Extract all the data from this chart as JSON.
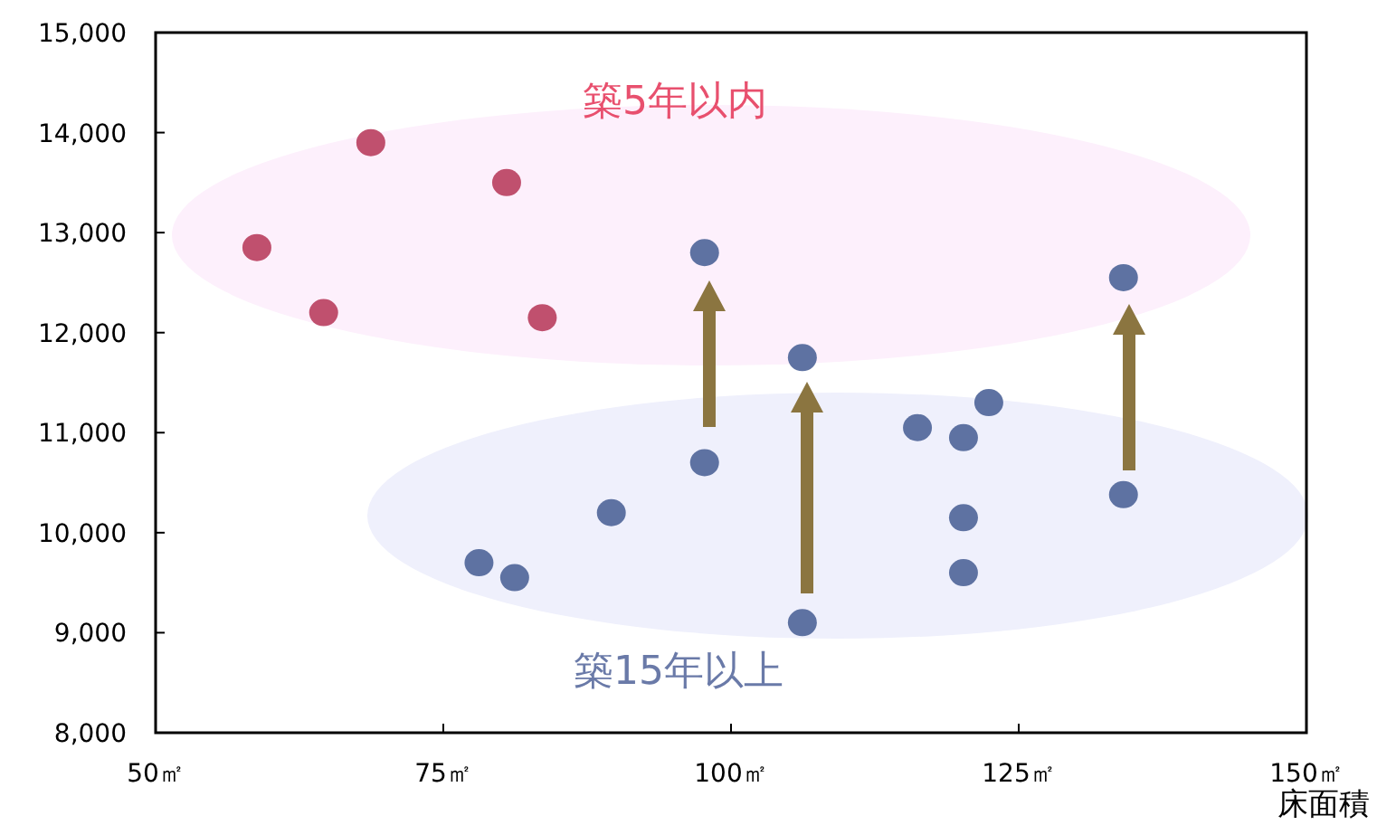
{
  "chart_data": {
    "type": "scatter",
    "xlabel": "床面積",
    "grid": false,
    "marker": "circle",
    "xlim": [
      50,
      150
    ],
    "xticks": [
      {
        "value": 50,
        "label": "50㎡"
      },
      {
        "value": 75,
        "label": "75㎡"
      },
      {
        "value": 100,
        "label": "100㎡"
      },
      {
        "value": 125,
        "label": "125㎡"
      },
      {
        "value": 150,
        "label": "150㎡"
      }
    ],
    "ylim": [
      8000,
      15000
    ],
    "yticks": [
      {
        "value": 8000,
        "label": "8,000"
      },
      {
        "value": 9000,
        "label": "9,000"
      },
      {
        "value": 10000,
        "label": "10,000"
      },
      {
        "value": 11000,
        "label": "11,000"
      },
      {
        "value": 12000,
        "label": "12,000"
      },
      {
        "value": 13000,
        "label": "13,000"
      },
      {
        "value": 14000,
        "label": "14,000"
      },
      {
        "value": 15000,
        "label": "15,000"
      }
    ],
    "series": [
      {
        "name": "築5年以内",
        "color": "#c0506e",
        "x": [
          58.8,
          64.6,
          68.7,
          80.5,
          83.6
        ],
        "values": [
          12850,
          12200,
          13900,
          13500,
          12150
        ]
      },
      {
        "name": "築15年以上",
        "color": "#5e72a2",
        "x": [
          97.7,
          106.2,
          134.1,
          116.2,
          120.2,
          122.4,
          97.7,
          89.6,
          78.1,
          81.2,
          120.2,
          120.2,
          106.2,
          134.1
        ],
        "values": [
          12800,
          11750,
          12550,
          11050,
          10950,
          11300,
          10700,
          10200,
          9700,
          9550,
          10150,
          9600,
          9100,
          10380
        ]
      }
    ]
  }
}
